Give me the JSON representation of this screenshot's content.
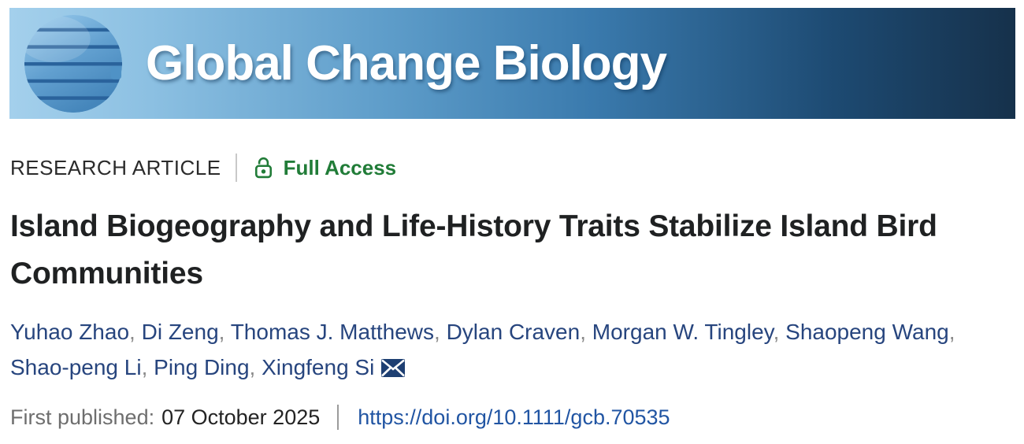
{
  "banner": {
    "journal_title": "Global Change Biology",
    "logo": "globe-icon"
  },
  "article": {
    "type_label": "RESEARCH ARTICLE",
    "access_label": "Full Access",
    "access_icon": "open-lock-icon",
    "title": "Island Biogeography and Life-History Traits Stabilize Island Bird Communities"
  },
  "authors": {
    "names": [
      "Yuhao Zhao",
      "Di Zeng",
      "Thomas J. Matthews",
      "Dylan Craven",
      "Morgan W. Tingley",
      "Shaopeng Wang",
      "Shao-peng Li",
      "Ping Ding",
      "Xingfeng Si"
    ],
    "separator": ",",
    "corresponding_author_icon": "envelope-icon"
  },
  "publication": {
    "first_published_label": "First published:",
    "date": "07 October 2025",
    "doi_url": "https://doi.org/10.1111/gcb.70535"
  },
  "colors": {
    "access_green": "#217c38",
    "author_navy": "#27457e",
    "comma_gray": "#8a8a8a",
    "doi_link_blue": "#2155a3",
    "banner_gradient_left": "#a4d0ec",
    "banner_gradient_right": "#16314b",
    "title_text": "#1f2122",
    "published_label_gray": "#6e6e6e"
  }
}
